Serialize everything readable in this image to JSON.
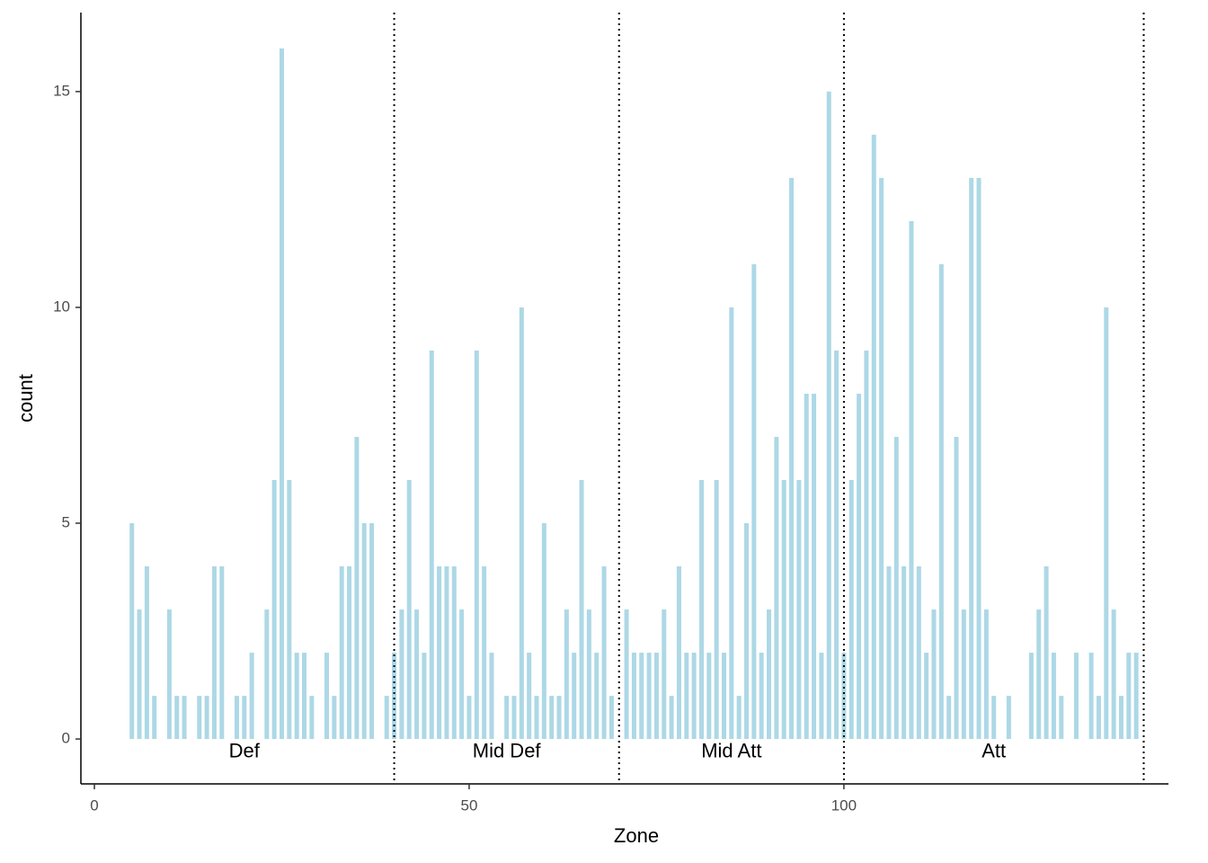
{
  "chart_data": {
    "type": "bar",
    "x_label": "Zone",
    "y_label": "count",
    "color": "#add8e6",
    "x": [
      5,
      6,
      7,
      8,
      10,
      11,
      12,
      14,
      15,
      16,
      17,
      19,
      20,
      21,
      23,
      24,
      25,
      26,
      27,
      28,
      29,
      31,
      32,
      33,
      34,
      35,
      36,
      37,
      39,
      40,
      41,
      42,
      43,
      44,
      45,
      46,
      47,
      48,
      49,
      50,
      51,
      52,
      53,
      55,
      56,
      57,
      58,
      59,
      60,
      61,
      62,
      63,
      64,
      65,
      66,
      67,
      68,
      69,
      71,
      72,
      73,
      74,
      75,
      76,
      77,
      78,
      79,
      80,
      81,
      82,
      83,
      84,
      85,
      86,
      87,
      88,
      89,
      90,
      91,
      92,
      93,
      94,
      95,
      96,
      97,
      98,
      99,
      100,
      101,
      102,
      103,
      104,
      105,
      106,
      107,
      108,
      109,
      110,
      111,
      112,
      113,
      114,
      115,
      116,
      117,
      118,
      119,
      120,
      122,
      125,
      126,
      127,
      128,
      129,
      131,
      133,
      134,
      135,
      136,
      137,
      138,
      139
    ],
    "values": [
      5,
      3,
      4,
      1,
      3,
      1,
      1,
      1,
      1,
      4,
      4,
      1,
      1,
      2,
      3,
      6,
      16,
      6,
      2,
      2,
      1,
      2,
      1,
      4,
      4,
      7,
      5,
      5,
      1,
      2,
      3,
      6,
      3,
      2,
      9,
      4,
      4,
      4,
      3,
      1,
      9,
      4,
      2,
      1,
      1,
      10,
      2,
      1,
      5,
      1,
      1,
      3,
      2,
      6,
      3,
      2,
      4,
      1,
      3,
      2,
      2,
      2,
      2,
      3,
      1,
      4,
      2,
      2,
      6,
      2,
      6,
      2,
      10,
      1,
      5,
      11,
      2,
      3,
      7,
      6,
      13,
      6,
      8,
      8,
      2,
      15,
      9,
      2,
      6,
      8,
      9,
      14,
      13,
      4,
      7,
      4,
      12,
      4,
      2,
      3,
      11,
      1,
      7,
      3,
      13,
      13,
      3,
      1,
      1,
      2,
      3,
      4,
      2,
      1,
      2,
      2,
      1,
      10,
      3,
      1,
      2,
      2
    ],
    "xlim": [
      -1.8,
      143.3
    ],
    "ylim": [
      -1.04,
      16.83
    ],
    "xticks": [
      0,
      50,
      100
    ],
    "yticks": [
      0,
      5,
      10,
      15
    ],
    "vlines": [
      40,
      70,
      100,
      140
    ],
    "annotations": [
      {
        "text": "Def",
        "x": 20,
        "y": -0.3
      },
      {
        "text": "Mid Def",
        "x": 55,
        "y": -0.3
      },
      {
        "text": "Mid Att",
        "x": 85,
        "y": -0.3
      },
      {
        "text": "Att",
        "x": 120,
        "y": -0.3
      }
    ]
  }
}
